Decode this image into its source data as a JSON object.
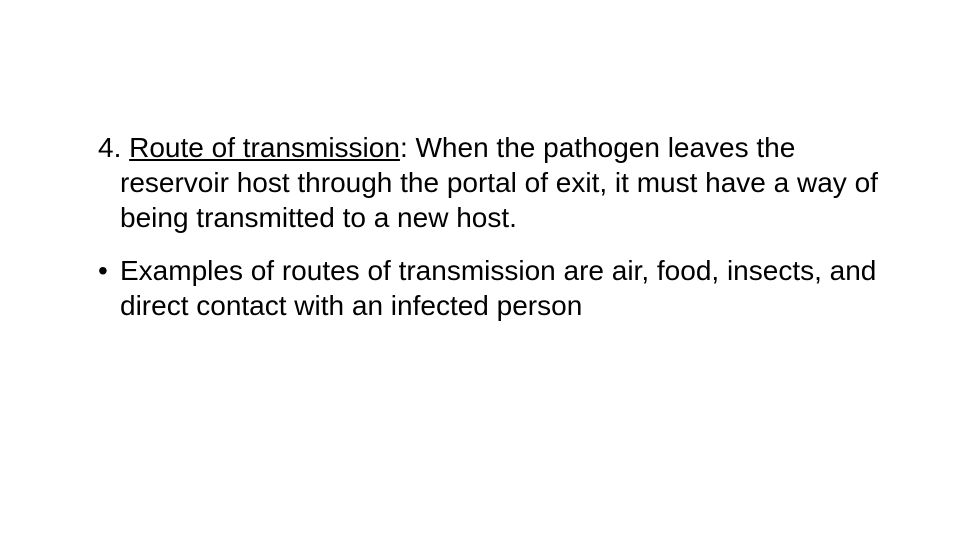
{
  "slide": {
    "item1": {
      "number": "4. ",
      "heading": "Route of transmission",
      "body": ": When the pathogen leaves the reservoir host through the  portal of exit, it must have a way of being transmitted to a new host."
    },
    "bullet1": {
      "marker": "•",
      "text": "Examples of routes of transmission are air, food, insects, and direct contact with an infected person"
    },
    "style": {
      "font_family": "Comic Sans MS",
      "font_size_pt": 28,
      "text_color": "#000000",
      "background_color": "#ffffff",
      "underline_heading": true,
      "line_height": 1.25
    }
  }
}
